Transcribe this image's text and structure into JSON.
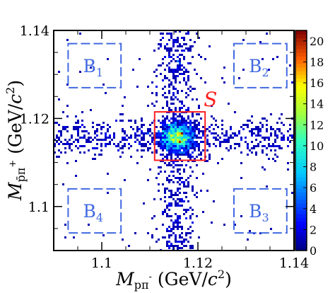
{
  "chart_data": {
    "type": "heatmap",
    "xlim": [
      1.09,
      1.14
    ],
    "ylim": [
      1.09,
      1.14
    ],
    "xticks": [
      1.1,
      1.12,
      1.14
    ],
    "yticks": [
      1.1,
      1.12,
      1.14
    ],
    "x_tick_labels": [
      "1.1",
      "1.12",
      "1.14"
    ],
    "y_tick_labels": [
      "1.1",
      "1.12",
      "1.14"
    ],
    "xlabel": {
      "prefix": "M",
      "sub": "pπ",
      "sup": "-",
      "unit": " (GeV/",
      "c": "c",
      "pow": "2",
      "close": ")"
    },
    "ylabel": {
      "prefix": "M",
      "sub": "p̄π",
      "sup": "+",
      "unit": " (GeV/",
      "c": "c",
      "pow": "2",
      "close": ")"
    },
    "colorbar": {
      "range": [
        0,
        21
      ],
      "ticks": [
        0,
        2,
        4,
        6,
        8,
        10,
        12,
        14,
        16,
        18,
        20
      ],
      "tick_labels": [
        "0",
        "2",
        "4",
        "6",
        "8",
        "10",
        "12",
        "14",
        "16",
        "18",
        "20"
      ]
    },
    "signal_center": [
      1.1157,
      1.1157
    ],
    "peak_count": 21,
    "regions": [
      {
        "letter": "S",
        "index": "",
        "x": [
          1.111,
          1.1215
        ],
        "y": [
          1.1105,
          1.1215
        ],
        "color": "#ff2020",
        "style": "solid"
      },
      {
        "letter": "B",
        "index": "1",
        "x": [
          1.093,
          1.104
        ],
        "y": [
          1.127,
          1.137
        ],
        "color": "#4169e1",
        "style": "dashed"
      },
      {
        "letter": "B",
        "index": "2",
        "x": [
          1.1275,
          1.1385
        ],
        "y": [
          1.127,
          1.137
        ],
        "color": "#4169e1",
        "style": "dashed"
      },
      {
        "letter": "B",
        "index": "4",
        "x": [
          1.093,
          1.104
        ],
        "y": [
          1.094,
          1.104
        ],
        "color": "#4169e1",
        "style": "dashed"
      },
      {
        "letter": "B",
        "index": "3",
        "x": [
          1.1275,
          1.1385
        ],
        "y": [
          1.094,
          1.104
        ],
        "color": "#4169e1",
        "style": "dashed"
      }
    ],
    "grid": false,
    "legend": "none"
  }
}
